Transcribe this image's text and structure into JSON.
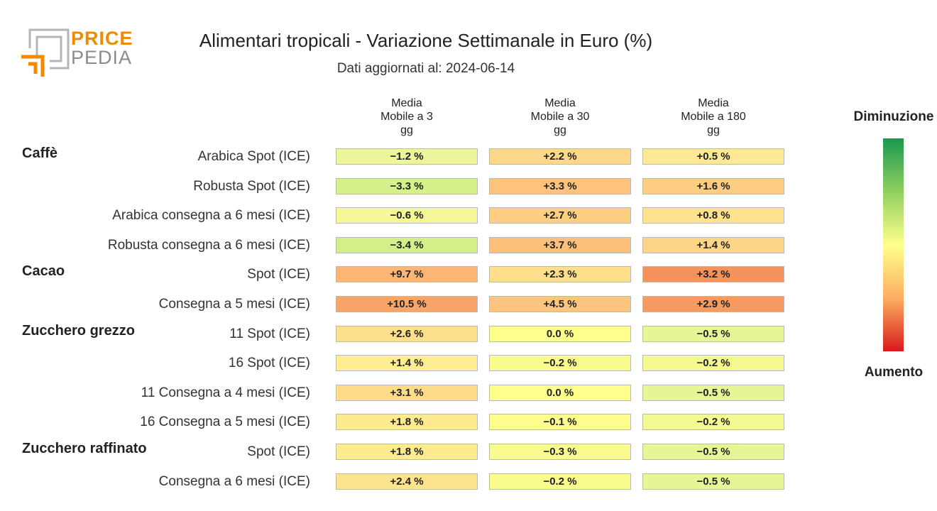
{
  "logo": {
    "line1": "PRICE",
    "line2": "PEDIA"
  },
  "title": "Alimentari tropicali - Variazione Settimanale in Euro (%)",
  "subtitle": "Dati aggiornati al: 2024-06-14",
  "legend": {
    "top": "Diminuzione",
    "bottom": "Aumento"
  },
  "chart_data": {
    "type": "heatmap",
    "columns": [
      {
        "line1": "Media",
        "line2": "Mobile a 3",
        "line3": "gg"
      },
      {
        "line1": "Media",
        "line2": "Mobile a 30",
        "line3": "gg"
      },
      {
        "line1": "Media",
        "line2": "Mobile a 180",
        "line3": "gg"
      }
    ],
    "groups": [
      {
        "name": "Caffè",
        "rows": [
          {
            "label": "Arabica Spot (ICE)",
            "cells": [
              "−1.2 %",
              "+2.2 %",
              "+0.5 %"
            ],
            "colors": [
              "#ecf59a",
              "#fdd888",
              "#fee893"
            ]
          },
          {
            "label": "Robusta Spot (ICE)",
            "cells": [
              "−3.3 %",
              "+3.3 %",
              "+1.6 %"
            ],
            "colors": [
              "#d6f08a",
              "#fdc37c",
              "#fdcd81"
            ]
          },
          {
            "label": "Arabica consegna a 6 mesi (ICE)",
            "cells": [
              "−0.6 %",
              "+2.7 %",
              "+0.8 %"
            ],
            "colors": [
              "#f5f896",
              "#fdcf83",
              "#fee290"
            ]
          },
          {
            "label": "Robusta consegna a 6 mesi (ICE)",
            "cells": [
              "−3.4 %",
              "+3.7 %",
              "+1.4 %"
            ],
            "colors": [
              "#d4ef88",
              "#fdc07a",
              "#fdd586"
            ]
          }
        ]
      },
      {
        "name": "Cacao",
        "rows": [
          {
            "label": "Spot (ICE)",
            "cells": [
              "+9.7 %",
              "+2.3 %",
              "+3.2 %"
            ],
            "colors": [
              "#fdb575",
              "#fedd8b",
              "#f4925d"
            ]
          },
          {
            "label": "Consegna a 5 mesi (ICE)",
            "cells": [
              "+10.5 %",
              "+4.5 %",
              "+2.9 %"
            ],
            "colors": [
              "#f9a567",
              "#fdc47d",
              "#f69a60"
            ]
          }
        ]
      },
      {
        "name": "Zucchero grezzo",
        "rows": [
          {
            "label": "11 Spot (ICE)",
            "cells": [
              "+2.6 %",
              "0.0 %",
              "−0.5 %"
            ],
            "colors": [
              "#fee08c",
              "#ffff8c",
              "#e7f595"
            ]
          },
          {
            "label": "16 Spot (ICE)",
            "cells": [
              "+1.4 %",
              "−0.2 %",
              "−0.2 %"
            ],
            "colors": [
              "#feee91",
              "#fbfc8e",
              "#f4f992"
            ]
          },
          {
            "label": "11 Consegna a 4 mesi (ICE)",
            "cells": [
              "+3.1 %",
              "0.0 %",
              "−0.5 %"
            ],
            "colors": [
              "#fedb89",
              "#ffff8c",
              "#e7f595"
            ]
          },
          {
            "label": "16 Consegna a 5 mesi (ICE)",
            "cells": [
              "+1.8 %",
              "−0.1 %",
              "−0.2 %"
            ],
            "colors": [
              "#feea8f",
              "#fdfd8d",
              "#f4f992"
            ]
          }
        ]
      },
      {
        "name": "Zucchero raffinato",
        "rows": [
          {
            "label": "Spot (ICE)",
            "cells": [
              "+1.8 %",
              "−0.3 %",
              "−0.5 %"
            ],
            "colors": [
              "#feea8f",
              "#f9fb8f",
              "#e7f595"
            ]
          },
          {
            "label": "Consegna a 6 mesi (ICE)",
            "cells": [
              "+2.4 %",
              "−0.2 %",
              "−0.5 %"
            ],
            "colors": [
              "#fee38d",
              "#fbfc8e",
              "#e7f595"
            ]
          }
        ]
      }
    ]
  }
}
